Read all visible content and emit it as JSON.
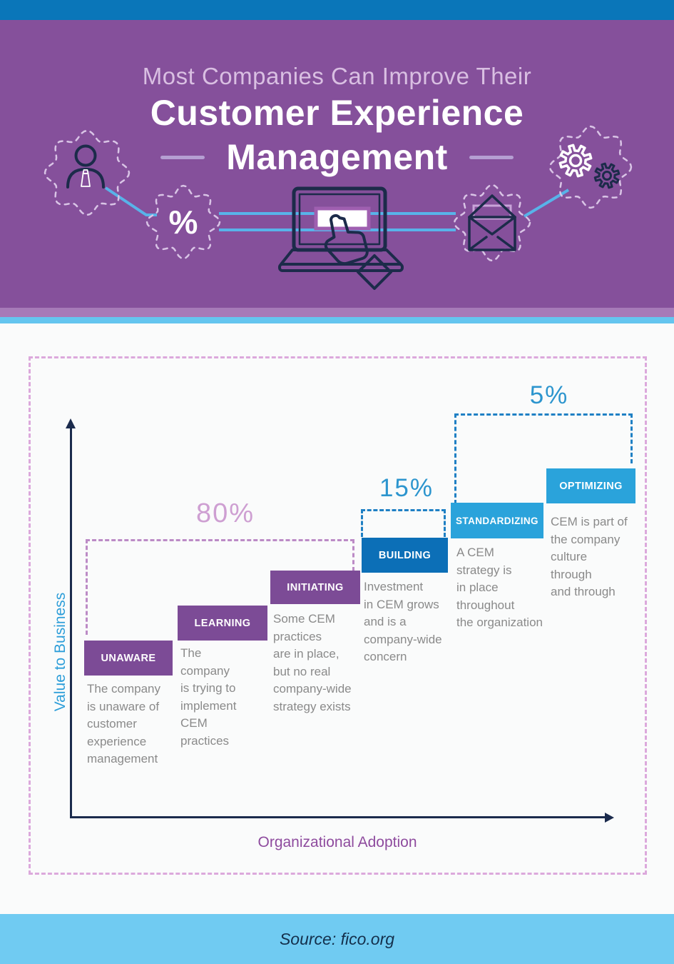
{
  "header": {
    "kicker": "Most Companies Can Improve Their",
    "title_line_1": "Customer Experience",
    "title_line_2": "Management",
    "percent_badge": "%",
    "icons": [
      "person-icon",
      "percent-badge-icon",
      "laptop-touch-icon",
      "envelope-icon",
      "gears-icon"
    ]
  },
  "maturity_chart": {
    "y_axis_label": "Value to Business",
    "x_axis_label": "Organizational Adoption",
    "adoption_percents": [
      {
        "value": "80%",
        "color": "#CE9FD2"
      },
      {
        "value": "15%",
        "color": "#2C95CE"
      },
      {
        "value": "5%",
        "color": "#2C95CE"
      }
    ],
    "stages": [
      {
        "label": "UNAWARE",
        "color": "#7C4B96",
        "description": "The company\nis unaware of\ncustomer\nexperience\nmanagement"
      },
      {
        "label": "LEARNING",
        "color": "#7C4B96",
        "description": "The\ncompany\nis trying to\nimplement\nCEM\npractices"
      },
      {
        "label": "INITIATING",
        "color": "#7C4B96",
        "description": "Some CEM\npractices\nare in place,\nbut no real\ncompany-wide\nstrategy exists"
      },
      {
        "label": "BUILDING",
        "color": "#0C6FB7",
        "description": "Investment\nin CEM grows\nand is a\ncompany-wide\nconcern"
      },
      {
        "label": "STANDARDIZING",
        "color": "#2AA3DB",
        "description": "A CEM\nstrategy is\nin place\nthroughout\nthe organization"
      },
      {
        "label": "OPTIMIZING",
        "color": "#2AA3DB",
        "description": "CEM is part of\nthe company\nculture\nthrough\nand through"
      }
    ]
  },
  "footer": {
    "source": "Source: fico.org"
  },
  "colors": {
    "top_bar": "#0A76B9",
    "header_background": "#85509B",
    "divider_purple": "#A67AB8",
    "divider_blue": "#64C5EF",
    "page_background": "#FAFBFB",
    "chart_border_dash": "#DCA9DC",
    "region_dash_purple": "#BC8BC6",
    "region_dash_blue": "#1F80C4",
    "axis": "#1B2B4D",
    "axis_label_y": "#2D9ED9",
    "axis_label_x": "#8E4B9E",
    "stage_description_text": "#8A8A8A",
    "footer_background": "#70CBF2",
    "footer_text": "#14304C",
    "connector_line": "#58B3E9",
    "icon_outline": "#1C2B4A",
    "gear_dash_outline": "#D9C4E6",
    "laptop_screen_accent": "#9F5FB0",
    "hand_cuff": "#4BA8E8",
    "title_text": "#FFFFFF",
    "kicker_text": "#D9BFE2"
  }
}
